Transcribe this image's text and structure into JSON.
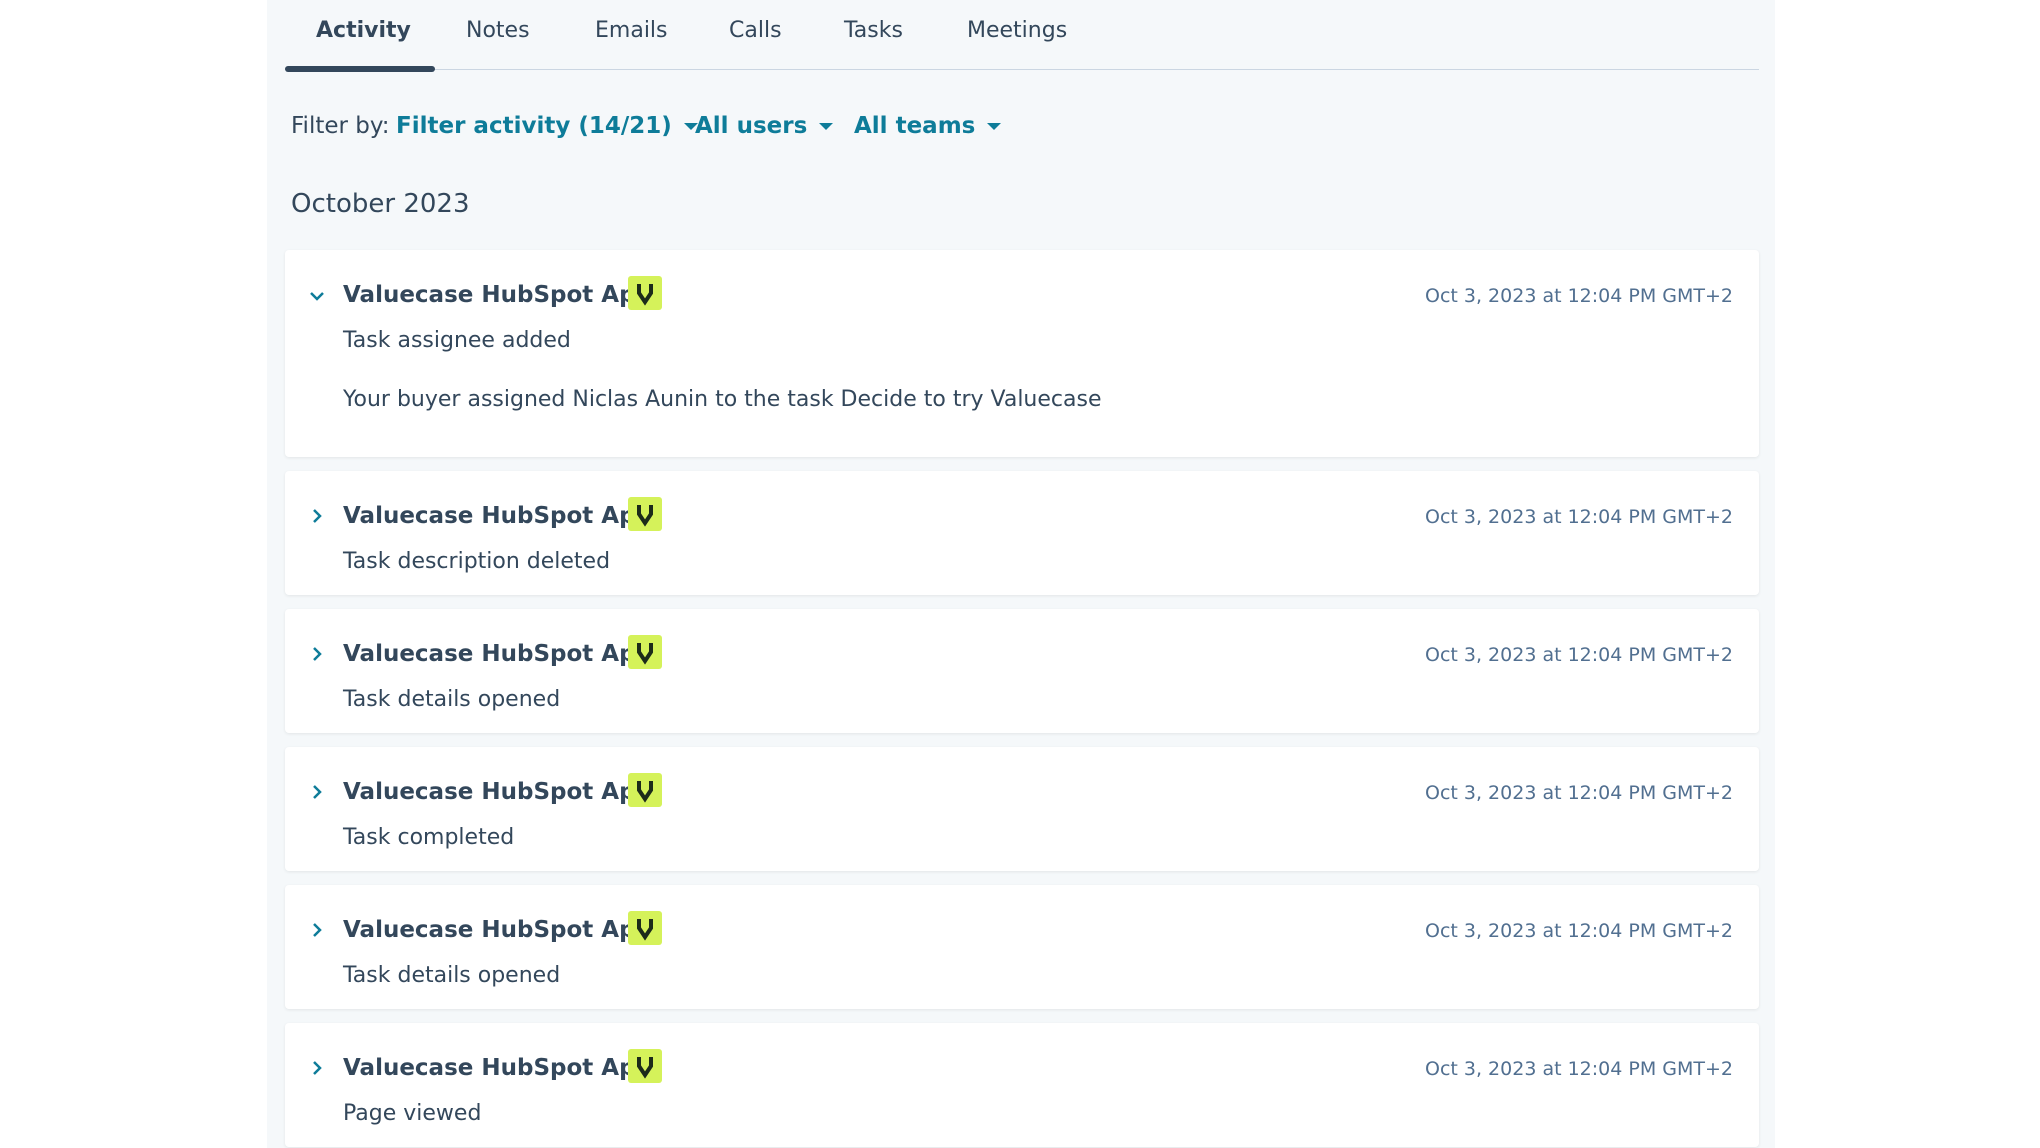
{
  "tabs": [
    "Activity",
    "Notes",
    "Emails",
    "Calls",
    "Tasks",
    "Meetings"
  ],
  "filter": {
    "label": "Filter by:",
    "options": [
      "Filter activity (14/21)",
      "All users",
      "All teams"
    ]
  },
  "month": "October 2023",
  "items": [
    {
      "app": "Valuecase HubSpot App",
      "action": "Task assignee added",
      "detail": "Your buyer assigned Niclas Aunin to the task Decide to try Valuecase",
      "time": "Oct 3, 2023 at 12:04 PM GMT+2"
    },
    {
      "app": "Valuecase HubSpot App",
      "action": "Task description deleted",
      "time": "Oct 3, 2023 at 12:04 PM GMT+2"
    },
    {
      "app": "Valuecase HubSpot App",
      "action": "Task details opened",
      "time": "Oct 3, 2023 at 12:04 PM GMT+2"
    },
    {
      "app": "Valuecase HubSpot App",
      "action": "Task completed",
      "time": "Oct 3, 2023 at 12:04 PM GMT+2"
    },
    {
      "app": "Valuecase HubSpot App",
      "action": "Task details opened",
      "time": "Oct 3, 2023 at 12:04 PM GMT+2"
    },
    {
      "app": "Valuecase HubSpot App",
      "action": "Page viewed",
      "time": "Oct 3, 2023 at 12:04 PM GMT+2"
    }
  ]
}
